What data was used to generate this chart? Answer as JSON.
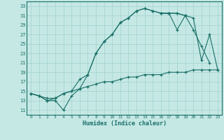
{
  "xlabel": "Humidex (Indice chaleur)",
  "bg_color": "#c5e8e5",
  "grid_color": "#a8d5d0",
  "line_color": "#1a7068",
  "line1_x": [
    0,
    1,
    2,
    3,
    4,
    5,
    6,
    7,
    8,
    9,
    10,
    11,
    12,
    13,
    14,
    15,
    16,
    17,
    18,
    19,
    20,
    21,
    22,
    23
  ],
  "line1_y": [
    14.5,
    14.0,
    13.0,
    13.0,
    11.0,
    14.0,
    15.5,
    18.5,
    23.0,
    25.5,
    27.0,
    29.5,
    30.5,
    32.0,
    32.5,
    32.0,
    31.5,
    31.5,
    31.5,
    31.0,
    null,
    null,
    null,
    null
  ],
  "line2_x": [
    0,
    1,
    2,
    3,
    4,
    5,
    6,
    7,
    8,
    9,
    10,
    11,
    12,
    13,
    14,
    15,
    16,
    17,
    18,
    19,
    20,
    21,
    22,
    23
  ],
  "line2_y": [
    14.5,
    14.0,
    13.0,
    13.5,
    14.5,
    15.0,
    17.5,
    18.5,
    23.0,
    25.5,
    27.0,
    29.5,
    30.5,
    32.0,
    32.5,
    32.0,
    31.5,
    31.5,
    28.0,
    31.0,
    28.0,
    24.5,
    21.0,
    null
  ],
  "line3_x": [
    0,
    1,
    2,
    3,
    4,
    5,
    6,
    7,
    8,
    9,
    10,
    11,
    12,
    13,
    14,
    15,
    16,
    17,
    18,
    19,
    20,
    21,
    22,
    23
  ],
  "line3_y": [
    14.5,
    14.0,
    13.5,
    13.5,
    14.5,
    15.0,
    15.5,
    16.0,
    16.5,
    17.0,
    17.0,
    17.5,
    18.0,
    18.0,
    18.5,
    18.5,
    18.5,
    19.0,
    19.0,
    19.0,
    19.5,
    19.5,
    19.5,
    19.5
  ],
  "line4_x": [
    16,
    17,
    18,
    19,
    20,
    21,
    22,
    23
  ],
  "line4_y": [
    31.5,
    31.5,
    31.5,
    31.0,
    30.5,
    21.5,
    27.0,
    19.5
  ],
  "xlim": [
    -0.5,
    23.5
  ],
  "ylim": [
    10,
    34
  ],
  "yticks": [
    11,
    13,
    15,
    17,
    19,
    21,
    23,
    25,
    27,
    29,
    31,
    33
  ],
  "xticks": [
    0,
    1,
    2,
    3,
    4,
    5,
    6,
    7,
    8,
    9,
    10,
    11,
    12,
    13,
    14,
    15,
    16,
    17,
    18,
    19,
    20,
    21,
    22,
    23
  ]
}
